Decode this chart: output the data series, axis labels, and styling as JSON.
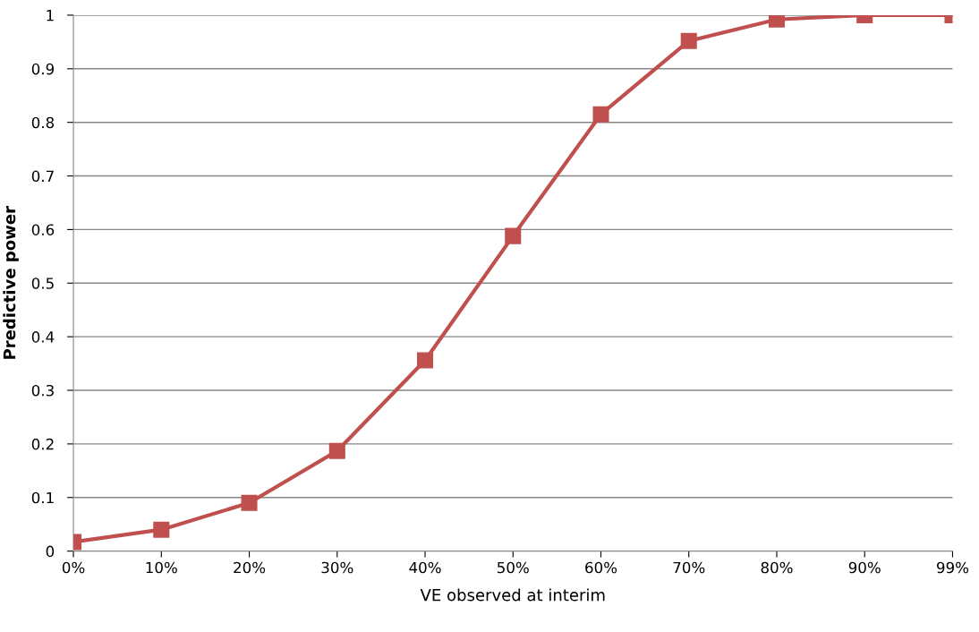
{
  "chart_data": {
    "type": "line",
    "xlabel": "VE observed at interim",
    "ylabel": "Predictive power",
    "categories": [
      "0%",
      "10%",
      "20%",
      "30%",
      "40%",
      "50%",
      "60%",
      "70%",
      "80%",
      "90%",
      "99%"
    ],
    "series": [
      {
        "color": "#c0504d",
        "values": [
          0.017,
          0.04,
          0.09,
          0.187,
          0.356,
          0.588,
          0.815,
          0.952,
          0.992,
          1.0,
          1.0
        ]
      }
    ],
    "ylim": [
      0,
      1
    ],
    "yticks": [
      0,
      0.1,
      0.2,
      0.3,
      0.4,
      0.5,
      0.6,
      0.7,
      0.8,
      0.9,
      1
    ],
    "grid": "y",
    "marker": "square",
    "line_style": "solid"
  }
}
